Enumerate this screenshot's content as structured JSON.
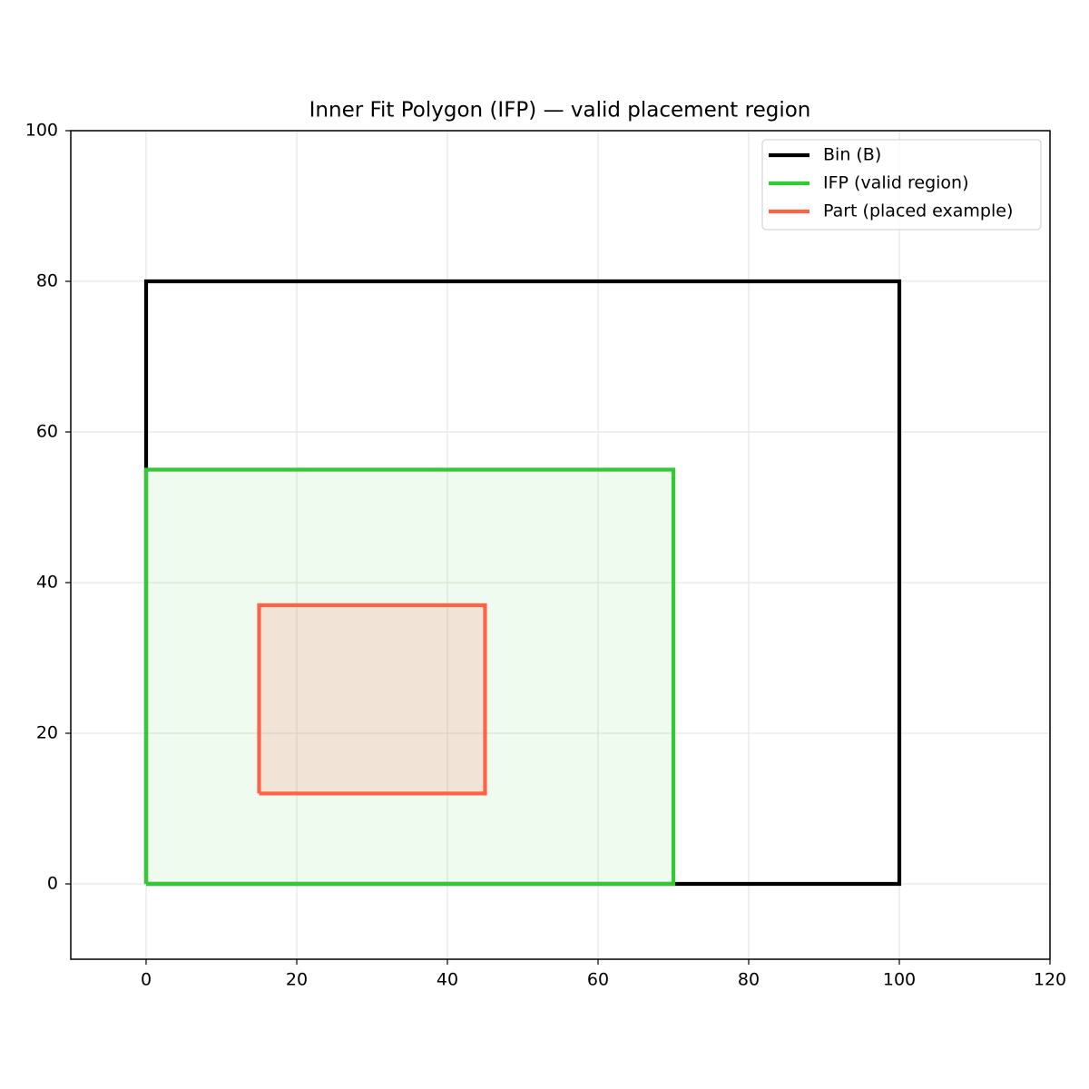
{
  "chart_data": {
    "type": "line",
    "title": "Inner Fit Polygon (IFP) — valid placement region",
    "series": [
      {
        "name": "Bin (B)",
        "color": "#000000",
        "x": [
          0,
          100,
          100,
          0,
          0
        ],
        "y": [
          0,
          0,
          80,
          80,
          0
        ]
      },
      {
        "name": "IFP (valid region)",
        "color": "#33c933",
        "fill_opacity": 0.08,
        "x": [
          0,
          70,
          70,
          0,
          0
        ],
        "y": [
          0,
          0,
          55,
          55,
          0
        ]
      },
      {
        "name": "Part (placed example)",
        "color": "#ff6347",
        "fill_opacity": 0.15,
        "x": [
          15,
          45,
          45,
          15,
          15
        ],
        "y": [
          12,
          12,
          37,
          37,
          12
        ]
      }
    ],
    "xlim": [
      -10,
      120
    ],
    "ylim": [
      -10,
      100
    ],
    "xticks": [
      0,
      20,
      40,
      60,
      80,
      100,
      120
    ],
    "yticks": [
      0,
      20,
      40,
      60,
      80,
      100
    ],
    "grid": true,
    "legend": "upper right"
  }
}
